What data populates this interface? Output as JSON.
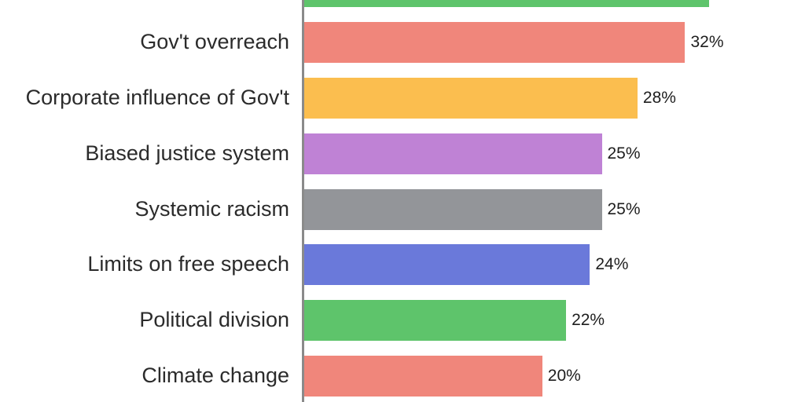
{
  "chart_data": {
    "type": "bar",
    "orientation": "horizontal",
    "title": "",
    "xlabel": "",
    "ylabel": "",
    "value_unit": "%",
    "grid": false,
    "legend": false,
    "axis_color": "#8a8a8a",
    "background": "#ffffff",
    "note": "Topmost bar is cropped by the top edge of the screenshot; its category label and value label are not visible. Its value (~34) is estimated from its bar length relative to the 32% bar.",
    "bars": [
      {
        "label": "",
        "value": 34,
        "value_label": "",
        "color": "#5ec46b",
        "label_visible": false,
        "value_label_visible": false,
        "cropped": true
      },
      {
        "label": "Gov't overreach",
        "value": 32,
        "value_label": "32%",
        "color": "#f0867b",
        "label_visible": true,
        "value_label_visible": true,
        "cropped": false
      },
      {
        "label": "Corporate influence of Gov't",
        "value": 28,
        "value_label": "28%",
        "color": "#fbbe4f",
        "label_visible": true,
        "value_label_visible": true,
        "cropped": false
      },
      {
        "label": "Biased justice system",
        "value": 25,
        "value_label": "25%",
        "color": "#bf82d5",
        "label_visible": true,
        "value_label_visible": true,
        "cropped": false
      },
      {
        "label": "Systemic racism",
        "value": 25,
        "value_label": "25%",
        "color": "#939599",
        "label_visible": true,
        "value_label_visible": true,
        "cropped": false
      },
      {
        "label": "Limits on free speech",
        "value": 24,
        "value_label": "24%",
        "color": "#6a79da",
        "label_visible": true,
        "value_label_visible": true,
        "cropped": false
      },
      {
        "label": "Political division",
        "value": 22,
        "value_label": "22%",
        "color": "#5ec46b",
        "label_visible": true,
        "value_label_visible": true,
        "cropped": false
      },
      {
        "label": "Climate change",
        "value": 20,
        "value_label": "20%",
        "color": "#f0867b",
        "label_visible": true,
        "value_label_visible": true,
        "cropped": false
      }
    ]
  }
}
